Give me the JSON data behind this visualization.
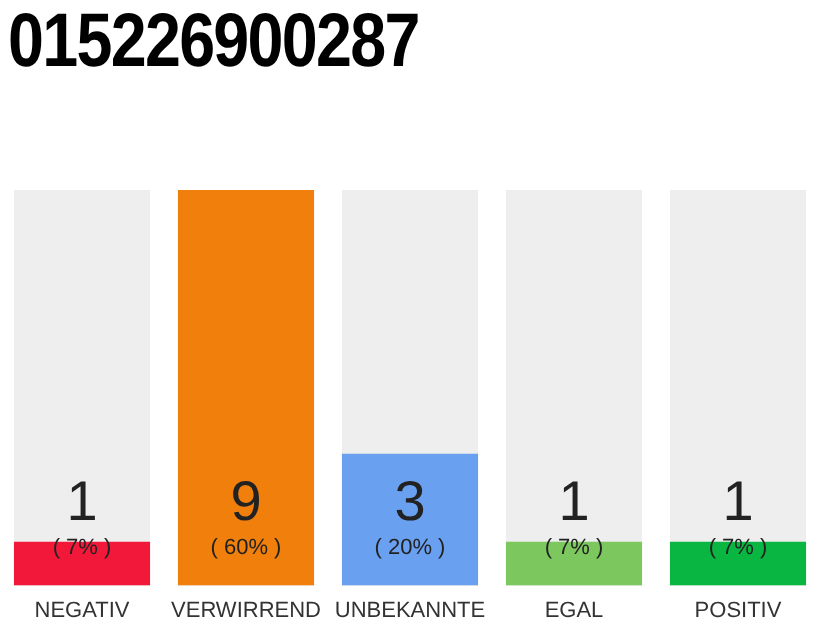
{
  "chart_data": {
    "type": "bar",
    "title": "015226900287",
    "categories": [
      "NEGATIV",
      "VERWIRREND",
      "UNBEKANNTE",
      "EGAL",
      "POSITIV"
    ],
    "values": [
      1,
      9,
      3,
      1,
      1
    ],
    "colors": [
      "#f2183a",
      "#f07f0c",
      "#6aa0f0",
      "#7dc85e",
      "#0ab642"
    ],
    "ylim": [
      0,
      9
    ],
    "data_labels": true,
    "grid": false,
    "legend": false,
    "tick_labels": "x",
    "annotations": [
      "( 7% )",
      "( 60% )",
      "( 20% )",
      "( 7% )",
      "( 7% )"
    ]
  }
}
